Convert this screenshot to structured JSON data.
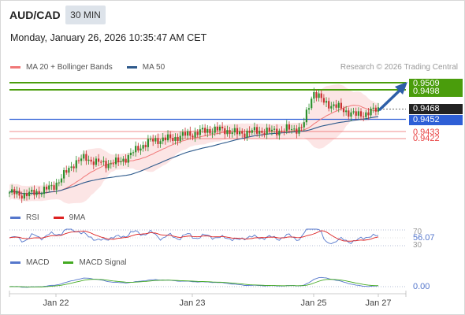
{
  "header": {
    "symbol": "AUD/CAD",
    "timeframe": "30 MIN",
    "datetime": "Monday, January 26, 2026 10:35:47 AM CET",
    "credit": "Research © 2026 Trading Central"
  },
  "price_legend": [
    {
      "label": "MA 20 + Bollinger Bands",
      "color": "#f07878"
    },
    {
      "label": "MA 50",
      "color": "#2e5a8c"
    }
  ],
  "rsi_legend": [
    {
      "label": "RSI",
      "color": "#5577cc"
    },
    {
      "label": "9MA",
      "color": "#dd2222"
    }
  ],
  "macd_legend": [
    {
      "label": "MACD",
      "color": "#5577cc"
    },
    {
      "label": "MACD Signal",
      "color": "#44aa22"
    }
  ],
  "colors": {
    "resistance": "#4a9d0c",
    "pivot": "#2e5fd6",
    "support": "#e84040",
    "current": "#222222",
    "candle_up": "#2c8f2c",
    "candle_down": "#c83030",
    "bollinger_fill": "#fbe0e0",
    "arrow": "#2e5fa8"
  },
  "price_labels": [
    {
      "text": "0.9509",
      "style": "green"
    },
    {
      "text": "0.9498",
      "style": "green"
    },
    {
      "text": "0.9468",
      "style": "black"
    },
    {
      "text": "0.9452",
      "style": "blue"
    },
    {
      "text": "0.9433",
      "style": "red"
    },
    {
      "text": "0.9422",
      "style": "red"
    }
  ],
  "rsi_labels": {
    "upper": "70",
    "value": "56.07",
    "lower": "30"
  },
  "macd_labels": {
    "value": "0.00"
  },
  "x_labels": [
    "Jan 22",
    "Jan 23",
    "Jan 25",
    "Jan 27"
  ],
  "chart_data": {
    "type": "candlestick",
    "symbol": "AUD/CAD",
    "timeframe": "30 MIN",
    "x_ticks": [
      "Jan 22",
      "Jan 23",
      "Jan 25",
      "Jan 27"
    ],
    "levels": {
      "resistance": [
        0.9509,
        0.9498
      ],
      "pivot": 0.9452,
      "support": [
        0.9433,
        0.9422
      ],
      "last_price": 0.9468
    },
    "close_path": [
      0.9338,
      0.9335,
      0.9336,
      0.9341,
      0.9347,
      0.9365,
      0.9385,
      0.9392,
      0.9385,
      0.9383,
      0.9385,
      0.9395,
      0.9409,
      0.9418,
      0.9421,
      0.9422,
      0.9427,
      0.943,
      0.9434,
      0.9436,
      0.9435,
      0.943,
      0.9432,
      0.9434,
      0.9433,
      0.9435,
      0.9437,
      0.9438,
      0.9496,
      0.9478,
      0.9473,
      0.9465,
      0.9458,
      0.9462,
      0.9468
    ],
    "rsi": {
      "value": 56.07,
      "levels": [
        30,
        70
      ]
    },
    "macd": {
      "value": 0.0
    }
  }
}
